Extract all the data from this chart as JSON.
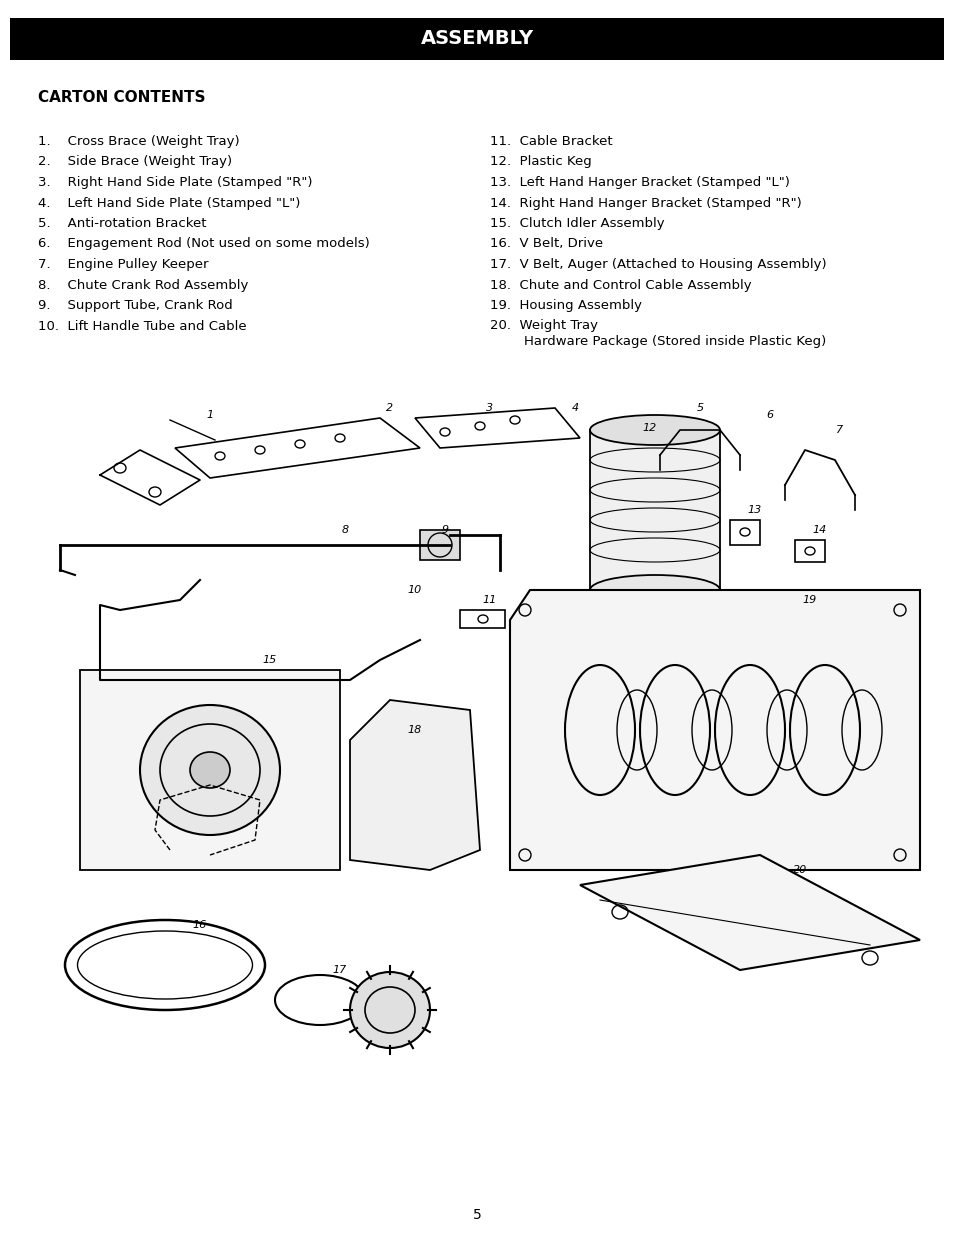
{
  "title": "ASSEMBLY",
  "title_bg": "#000000",
  "title_color": "#ffffff",
  "section_header": "CARTON CONTENTS",
  "left_items": [
    "1.    Cross Brace (Weight Tray)",
    "2.    Side Brace (Weight Tray)",
    "3.    Right Hand Side Plate (Stamped \"R\")",
    "4.    Left Hand Side Plate (Stamped \"L\")",
    "5.    Anti-rotation Bracket",
    "6.    Engagement Rod (Not used on some models)",
    "7.    Engine Pulley Keeper",
    "8.    Chute Crank Rod Assembly",
    "9.    Support Tube, Crank Rod",
    "10.  Lift Handle Tube and Cable"
  ],
  "right_items": [
    "11.  Cable Bracket",
    "12.  Plastic Keg",
    "13.  Left Hand Hanger Bracket (Stamped \"L\")",
    "14.  Right Hand Hanger Bracket (Stamped \"R\")",
    "15.  Clutch Idler Assembly",
    "16.  V Belt, Drive",
    "17.  V Belt, Auger (Attached to Housing Assembly)",
    "18.  Chute and Control Cable Assembly",
    "19.  Housing Assembly",
    "20.  Weight Tray\n        Hardware Package (Stored inside Plastic Keg)"
  ],
  "page_number": "5",
  "bg_color": "#ffffff",
  "text_color": "#000000",
  "body_font_size": 9.5,
  "header_font_size": 11
}
